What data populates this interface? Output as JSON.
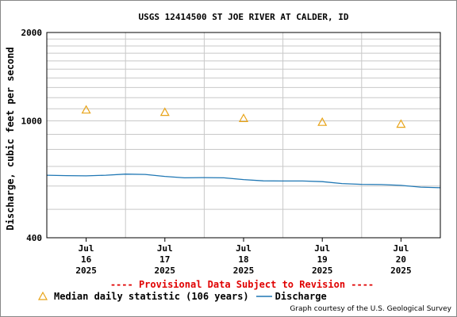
{
  "chart_data": {
    "type": "line",
    "title": "USGS 12414500 ST JOE RIVER AT CALDER, ID",
    "ylabel": "Discharge, cubic feet per second",
    "xlabel": "",
    "y_scale": "log",
    "ylim": [
      400,
      2000
    ],
    "y_ticks": [
      {
        "value": 400,
        "label": "400"
      },
      {
        "value": 1000,
        "label": "1000"
      },
      {
        "value": 2000,
        "label": "2000"
      }
    ],
    "y_minor_ticks": [
      500,
      600,
      700,
      800,
      900,
      1100,
      1200,
      1300,
      1400,
      1500,
      1600,
      1700,
      1800,
      1900
    ],
    "xlim": [
      "2025-07-15 12:00",
      "2025-07-20 12:00"
    ],
    "x_ticks": [
      {
        "value": "2025-07-16",
        "label": [
          "Jul",
          "16",
          "2025"
        ]
      },
      {
        "value": "2025-07-17",
        "label": [
          "Jul",
          "17",
          "2025"
        ]
      },
      {
        "value": "2025-07-18",
        "label": [
          "Jul",
          "18",
          "2025"
        ]
      },
      {
        "value": "2025-07-19",
        "label": [
          "Jul",
          "19",
          "2025"
        ]
      },
      {
        "value": "2025-07-20",
        "label": [
          "Jul",
          "20",
          "2025"
        ]
      }
    ],
    "grid": true,
    "series": [
      {
        "name": "Discharge",
        "type": "line",
        "color": "#1f77b4",
        "x": [
          "2025-07-15 12:00",
          "2025-07-15 18:00",
          "2025-07-16 00:00",
          "2025-07-16 06:00",
          "2025-07-16 12:00",
          "2025-07-16 18:00",
          "2025-07-17 00:00",
          "2025-07-17 06:00",
          "2025-07-17 12:00",
          "2025-07-17 18:00",
          "2025-07-18 00:00",
          "2025-07-18 06:00",
          "2025-07-18 12:00",
          "2025-07-18 18:00",
          "2025-07-19 00:00",
          "2025-07-19 06:00",
          "2025-07-19 12:00",
          "2025-07-19 18:00",
          "2025-07-20 00:00",
          "2025-07-20 06:00",
          "2025-07-20 12:00"
        ],
        "values": [
          653,
          651,
          650,
          653,
          659,
          657,
          647,
          640,
          641,
          640,
          631,
          625,
          624,
          624,
          621,
          612,
          608,
          607,
          603,
          595,
          592
        ]
      },
      {
        "name": "Median daily statistic (106 years)",
        "type": "scatter",
        "marker": "triangle",
        "color": "#e8a317",
        "x": [
          "2025-07-16",
          "2025-07-17",
          "2025-07-18",
          "2025-07-19",
          "2025-07-20"
        ],
        "values": [
          1090,
          1070,
          1020,
          990,
          975
        ]
      }
    ],
    "annotations": [
      "---- Provisional Data Subject to Revision ----"
    ],
    "legend": {
      "placement": "bottom",
      "entries": [
        "Median daily statistic (106 years)",
        "Discharge"
      ]
    },
    "footer": "Graph courtesy of the U.S. Geological Survey"
  },
  "colors": {
    "discharge": "#1f77b4",
    "median": "#e8a317",
    "provisional": "#e00000",
    "grid": "#c8c8c8"
  }
}
